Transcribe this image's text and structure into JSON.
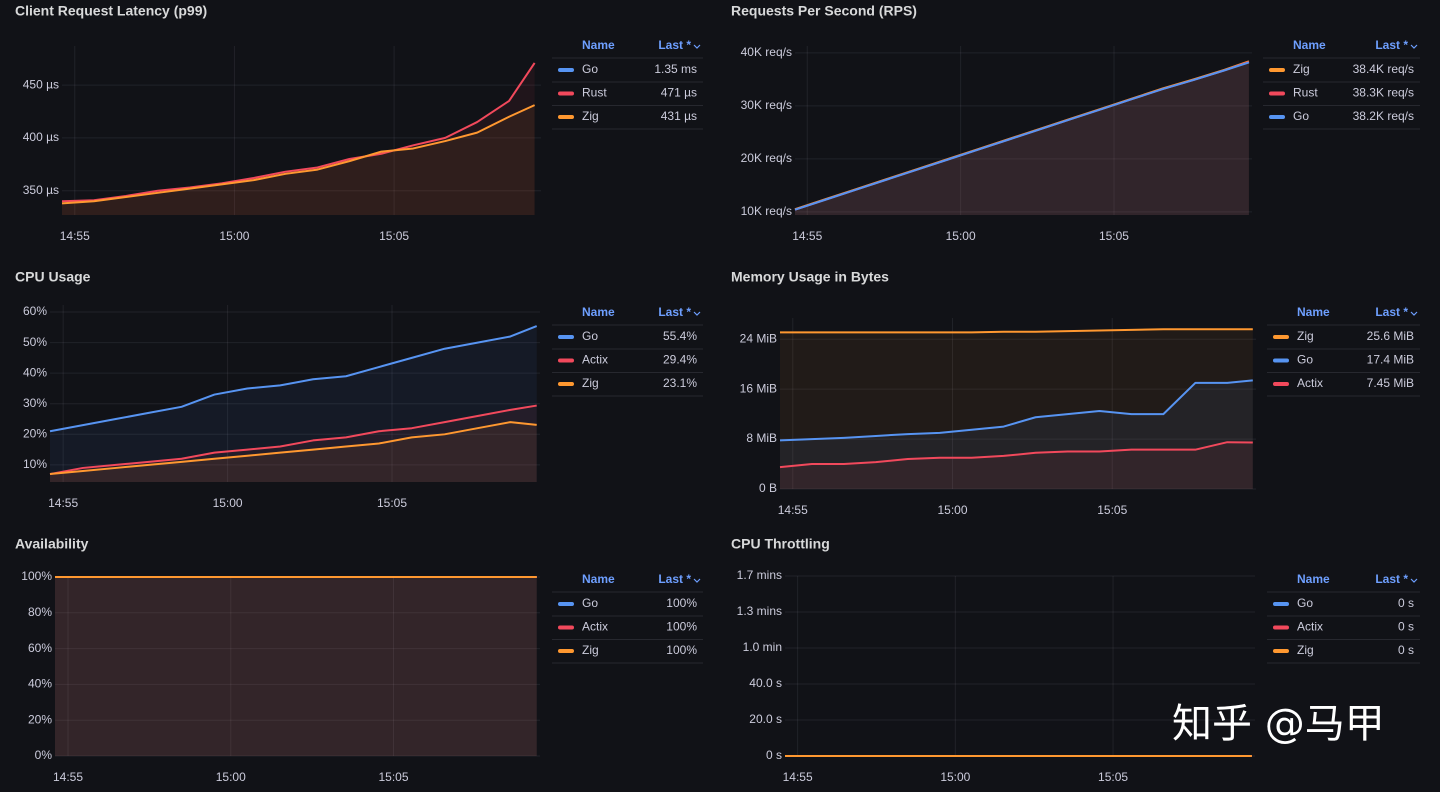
{
  "chart_data": [
    {
      "type": "line",
      "title": "Client Request Latency (p99)",
      "legend_columns": [
        "Name",
        "Last *"
      ],
      "x": [
        894.6,
        895.6,
        896.6,
        897.6,
        898.6,
        899.6,
        900.6,
        901.6,
        902.6,
        903.6,
        904.6,
        905.6,
        906.6,
        907.6,
        908.6,
        909.4
      ],
      "xlim": [
        894.6,
        909.6
      ],
      "xticks": [
        {
          "value": 895,
          "label": "14:55"
        },
        {
          "value": 900,
          "label": "15:00"
        },
        {
          "value": 905,
          "label": "15:05"
        }
      ],
      "ylim": [
        327,
        487
      ],
      "yticks": [
        {
          "value": 350,
          "label": "350 µs"
        },
        {
          "value": 400,
          "label": "400 µs"
        },
        {
          "value": 450,
          "label": "450 µs"
        }
      ],
      "grid": true,
      "series": [
        {
          "name": "Go",
          "color": "#5794f2",
          "last": "1.35 ms",
          "values": [
            null,
            null,
            null,
            null,
            null,
            null,
            null,
            null,
            null,
            null,
            null,
            null,
            null,
            null,
            null,
            null
          ]
        },
        {
          "name": "Rust",
          "color": "#f2495c",
          "last": "471 µs",
          "values": [
            340,
            341,
            345,
            350,
            353,
            357,
            362,
            368,
            372,
            380,
            385,
            393,
            400,
            415,
            435,
            471
          ]
        },
        {
          "name": "Zig",
          "color": "#ff9830",
          "last": "431 µs",
          "values": [
            338,
            340,
            344,
            348,
            352,
            356,
            360,
            366,
            370,
            378,
            387,
            390,
            397,
            405,
            420,
            431
          ]
        }
      ]
    },
    {
      "type": "line",
      "title": "Requests Per Second (RPS)",
      "legend_columns": [
        "Name",
        "Last *"
      ],
      "x": [
        894.6,
        895.6,
        896.6,
        897.6,
        898.6,
        899.6,
        900.6,
        901.6,
        902.6,
        903.6,
        904.6,
        905.6,
        906.6,
        907.6,
        908.6,
        909.4
      ],
      "xlim": [
        894.6,
        909.5
      ],
      "xticks": [
        {
          "value": 895,
          "label": "14:55"
        },
        {
          "value": 900,
          "label": "15:00"
        },
        {
          "value": 905,
          "label": "15:05"
        }
      ],
      "ylim": [
        9400,
        41300
      ],
      "yticks": [
        {
          "value": 10000,
          "label": "10K req/s"
        },
        {
          "value": 20000,
          "label": "20K req/s"
        },
        {
          "value": 30000,
          "label": "30K req/s"
        },
        {
          "value": 40000,
          "label": "40K req/s"
        }
      ],
      "grid": true,
      "series": [
        {
          "name": "Zig",
          "color": "#ff9830",
          "last": "38.4K req/s",
          "values": [
            10500,
            12400,
            14300,
            16200,
            18100,
            20000,
            21900,
            23800,
            25700,
            27600,
            29500,
            31400,
            33300,
            35000,
            36800,
            38400
          ]
        },
        {
          "name": "Rust",
          "color": "#f2495c",
          "last": "38.3K req/s",
          "values": [
            10400,
            12300,
            14200,
            16100,
            18000,
            19900,
            21800,
            23700,
            25600,
            27500,
            29400,
            31300,
            33200,
            34900,
            36700,
            38300
          ]
        },
        {
          "name": "Go",
          "color": "#5794f2",
          "last": "38.2K req/s",
          "values": [
            10400,
            12300,
            14200,
            16100,
            18000,
            19900,
            21800,
            23700,
            25600,
            27500,
            29400,
            31300,
            33200,
            34900,
            36700,
            38200
          ]
        }
      ]
    },
    {
      "type": "line",
      "title": "CPU Usage",
      "legend_columns": [
        "Name",
        "Last *"
      ],
      "x": [
        894.6,
        895.6,
        896.6,
        897.6,
        898.6,
        899.6,
        900.6,
        901.6,
        902.6,
        903.6,
        904.6,
        905.6,
        906.6,
        907.6,
        908.6,
        909.4
      ],
      "xlim": [
        894.6,
        909.5
      ],
      "xticks": [
        {
          "value": 895,
          "label": "14:55"
        },
        {
          "value": 900,
          "label": "15:00"
        },
        {
          "value": 905,
          "label": "15:05"
        }
      ],
      "ylim": [
        4.4,
        62.3
      ],
      "yticks": [
        {
          "value": 10,
          "label": "10%"
        },
        {
          "value": 20,
          "label": "20%"
        },
        {
          "value": 30,
          "label": "30%"
        },
        {
          "value": 40,
          "label": "40%"
        },
        {
          "value": 50,
          "label": "50%"
        },
        {
          "value": 60,
          "label": "60%"
        }
      ],
      "grid": true,
      "series": [
        {
          "name": "Go",
          "color": "#5794f2",
          "last": "55.4%",
          "values": [
            21,
            23,
            25,
            27,
            29,
            33,
            35,
            36,
            38,
            39,
            42,
            45,
            48,
            50,
            52,
            55.4
          ]
        },
        {
          "name": "Actix",
          "color": "#f2495c",
          "last": "29.4%",
          "values": [
            7,
            9,
            10,
            11,
            12,
            14,
            15,
            16,
            18,
            19,
            21,
            22,
            24,
            26,
            28,
            29.4
          ]
        },
        {
          "name": "Zig",
          "color": "#ff9830",
          "last": "23.1%",
          "values": [
            7,
            8,
            9,
            10,
            11,
            12,
            13,
            14,
            15,
            16,
            17,
            19,
            20,
            22,
            24,
            23.1
          ]
        }
      ]
    },
    {
      "type": "line",
      "title": "Memory Usage in Bytes",
      "legend_columns": [
        "Name",
        "Last *"
      ],
      "x": [
        894.6,
        895.6,
        896.6,
        897.6,
        898.6,
        899.6,
        900.6,
        901.6,
        902.6,
        903.6,
        904.6,
        905.6,
        906.6,
        907.6,
        908.6,
        909.4
      ],
      "xlim": [
        894.6,
        909.5
      ],
      "xticks": [
        {
          "value": 895,
          "label": "14:55"
        },
        {
          "value": 900,
          "label": "15:00"
        },
        {
          "value": 905,
          "label": "15:05"
        }
      ],
      "ylim": [
        0,
        27.4
      ],
      "yticks": [
        {
          "value": 0,
          "label": "0 B"
        },
        {
          "value": 8,
          "label": "8 MiB"
        },
        {
          "value": 16,
          "label": "16 MiB"
        },
        {
          "value": 24,
          "label": "24 MiB"
        }
      ],
      "grid": true,
      "series": [
        {
          "name": "Zig",
          "color": "#ff9830",
          "last": "25.6 MiB",
          "values": [
            25.1,
            25.1,
            25.1,
            25.1,
            25.1,
            25.1,
            25.1,
            25.2,
            25.2,
            25.3,
            25.4,
            25.5,
            25.6,
            25.6,
            25.6,
            25.6
          ]
        },
        {
          "name": "Go",
          "color": "#5794f2",
          "last": "17.4 MiB",
          "values": [
            7.8,
            8,
            8.2,
            8.5,
            8.8,
            9,
            9.5,
            10,
            11.5,
            12,
            12.5,
            12,
            12,
            17,
            17,
            17.4
          ]
        },
        {
          "name": "Actix",
          "color": "#f2495c",
          "last": "7.45 MiB",
          "values": [
            3.5,
            4,
            4,
            4.3,
            4.8,
            5,
            5,
            5.3,
            5.8,
            6,
            6,
            6.3,
            6.3,
            6.3,
            7.5,
            7.45
          ]
        }
      ]
    },
    {
      "type": "line",
      "title": "Availability",
      "legend_columns": [
        "Name",
        "Last *"
      ],
      "x": [
        894.6,
        895.6,
        896.6,
        897.6,
        898.6,
        899.6,
        900.6,
        901.6,
        902.6,
        903.6,
        904.6,
        905.6,
        906.6,
        907.6,
        908.6,
        909.4
      ],
      "xlim": [
        894.6,
        909.5
      ],
      "xticks": [
        {
          "value": 895,
          "label": "14:55"
        },
        {
          "value": 900,
          "label": "15:00"
        },
        {
          "value": 905,
          "label": "15:05"
        }
      ],
      "ylim": [
        0,
        100
      ],
      "yticks": [
        {
          "value": 0,
          "label": "0%"
        },
        {
          "value": 20,
          "label": "20%"
        },
        {
          "value": 40,
          "label": "40%"
        },
        {
          "value": 60,
          "label": "60%"
        },
        {
          "value": 80,
          "label": "80%"
        },
        {
          "value": 100,
          "label": "100%"
        }
      ],
      "grid": true,
      "series": [
        {
          "name": "Go",
          "color": "#5794f2",
          "last": "100%",
          "values": [
            100,
            100,
            100,
            100,
            100,
            100,
            100,
            100,
            100,
            100,
            100,
            100,
            100,
            100,
            100,
            100
          ]
        },
        {
          "name": "Actix",
          "color": "#f2495c",
          "last": "100%",
          "values": [
            100,
            100,
            100,
            100,
            100,
            100,
            100,
            100,
            100,
            100,
            100,
            100,
            100,
            100,
            100,
            100
          ]
        },
        {
          "name": "Zig",
          "color": "#ff9830",
          "last": "100%",
          "values": [
            100,
            100,
            100,
            100,
            100,
            100,
            100,
            100,
            100,
            100,
            100,
            100,
            100,
            100,
            100,
            100
          ]
        }
      ]
    },
    {
      "type": "line",
      "title": "CPU Throttling",
      "legend_columns": [
        "Name",
        "Last *"
      ],
      "x": [
        894.6,
        895.6,
        896.6,
        897.6,
        898.6,
        899.6,
        900.6,
        901.6,
        902.6,
        903.6,
        904.6,
        905.6,
        906.6,
        907.6,
        908.6,
        909.4
      ],
      "xlim": [
        894.6,
        909.5
      ],
      "xticks": [
        {
          "value": 895,
          "label": "14:55"
        },
        {
          "value": 900,
          "label": "15:00"
        },
        {
          "value": 905,
          "label": "15:05"
        }
      ],
      "ylim": [
        0,
        100
      ],
      "yticks": [
        {
          "value": 0,
          "label": "0 s"
        },
        {
          "value": 20,
          "label": "20.0 s"
        },
        {
          "value": 40,
          "label": "40.0 s"
        },
        {
          "value": 60,
          "label": "1.0 min"
        },
        {
          "value": 80,
          "label": "1.3 mins"
        },
        {
          "value": 100,
          "label": "1.7 mins"
        }
      ],
      "grid": true,
      "series": [
        {
          "name": "Go",
          "color": "#5794f2",
          "last": "0 s",
          "values": [
            0,
            0,
            0,
            0,
            0,
            0,
            0,
            0,
            0,
            0,
            0,
            0,
            0,
            0,
            0,
            0
          ]
        },
        {
          "name": "Actix",
          "color": "#f2495c",
          "last": "0 s",
          "values": [
            0,
            0,
            0,
            0,
            0,
            0,
            0,
            0,
            0,
            0,
            0,
            0,
            0,
            0,
            0,
            0
          ]
        },
        {
          "name": "Zig",
          "color": "#ff9830",
          "last": "0 s",
          "values": [
            0,
            0,
            0,
            0,
            0,
            0,
            0,
            0,
            0,
            0,
            0,
            0,
            0,
            0,
            0,
            0
          ]
        }
      ]
    }
  ],
  "watermark": "知乎 @马甲"
}
